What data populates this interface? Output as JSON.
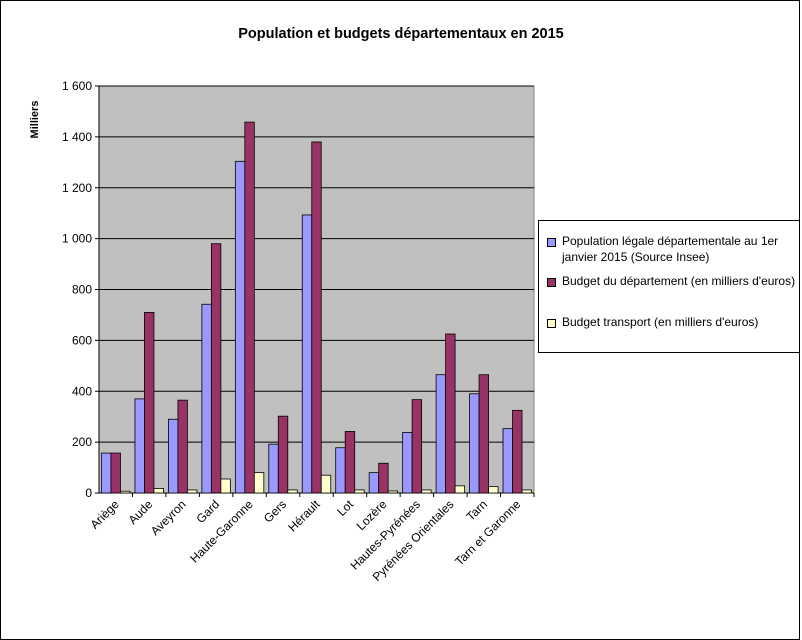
{
  "chart_data": {
    "type": "bar",
    "title": "Population et budgets départementaux en 2015",
    "ylabel": "Milliers",
    "xlabel": "",
    "ylim": [
      0,
      1600
    ],
    "yticks": [
      0,
      200,
      400,
      600,
      800,
      1000,
      1200,
      1400,
      1600
    ],
    "ytick_labels": [
      "0",
      "200",
      "400",
      "600",
      "800",
      "1 000",
      "1 200",
      "1 400",
      "1 600"
    ],
    "categories": [
      "Ariège",
      "Aude",
      "Aveyron",
      "Gard",
      "Haute-Garonne",
      "Gers",
      "Hérault",
      "Lot",
      "Lozère",
      "Hautes-Pyrénées",
      "Pyrénées Orientales",
      "Tarn",
      "Tarn et Garonne"
    ],
    "series": [
      {
        "name": "Population légale départementale au 1er janvier 2015 (Source Insee)",
        "color": "#9999FF",
        "values": [
          157,
          370,
          290,
          742,
          1304,
          192,
          1093,
          178,
          80,
          238,
          465,
          390,
          253
        ]
      },
      {
        "name": "Budget du département (en milliers d'euros)",
        "color": "#993366",
        "values": [
          157,
          710,
          365,
          980,
          1458,
          302,
          1380,
          242,
          117,
          367,
          625,
          465,
          325
        ]
      },
      {
        "name": "Budget transport (en milliers d'euros)",
        "color": "#FFFFCC",
        "values": [
          7,
          18,
          12,
          55,
          80,
          12,
          70,
          12,
          8,
          12,
          28,
          25,
          12
        ]
      }
    ],
    "grid": true,
    "plot_background": "#C0C0C0",
    "legend_position": "right"
  }
}
